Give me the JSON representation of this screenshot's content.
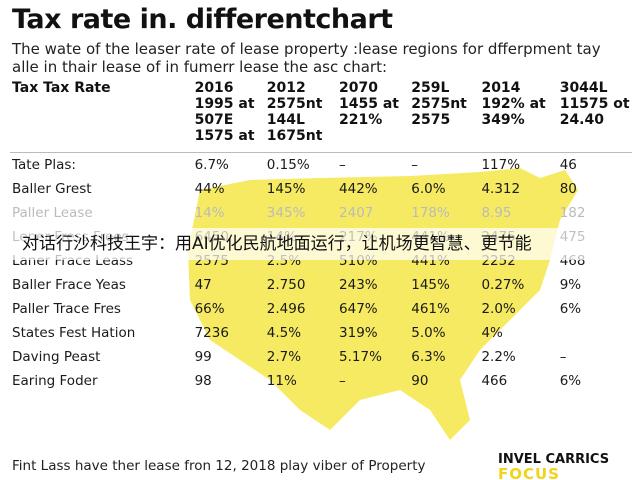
{
  "title": "Tax rate in. differentchart",
  "subtitle": "The wate of the leaser rate of lease property :lease regions for dfferpment tay alle in thair lease of in fumerr lease the asc chart:",
  "header": {
    "label": "Tax Tax Rate",
    "row1": [
      "2016\n1995 at",
      "2012\n2575nt",
      "2070\n1455 at",
      "259L\n2575nt",
      "2014\n192% at",
      "3044L\n11575 ot"
    ],
    "row2": [
      "507E\n1575 at",
      "144L\n1675nt",
      "221%",
      "2575",
      "349%",
      "24.40"
    ]
  },
  "rows": [
    {
      "label": "Tate Plas:",
      "values": [
        "6.7%",
        "0.15%",
        "–",
        "–",
        "117%",
        "46"
      ]
    },
    {
      "label": "Baller Grest",
      "values": [
        "44%",
        "145%",
        "442%",
        "6.0%",
        "4.312",
        "80"
      ]
    },
    {
      "label": "Paller Lease",
      "values": [
        "14%",
        "345%",
        "2407",
        "178%",
        "8.95",
        "182"
      ]
    },
    {
      "label": "Lener Fress Frees",
      "values": [
        "6450",
        "14%",
        "217%",
        "441%",
        "2475",
        "475"
      ]
    },
    {
      "label": "Laner Frace Leass",
      "values": [
        "2575",
        "2.5%",
        "510%",
        "441%",
        "2252",
        "468"
      ]
    },
    {
      "label": "Baller Frace Yeas",
      "values": [
        "47",
        "2.750",
        "243%",
        "145%",
        "0.27%",
        "9%"
      ]
    },
    {
      "label": "Paller Trace Fres",
      "values": [
        "66%",
        "2.496",
        "647%",
        "461%",
        "2.0%",
        "6%"
      ]
    },
    {
      "label": "States Fest Hation",
      "values": [
        "7236",
        "4.5%",
        "319%",
        "5.0%",
        "4%",
        ""
      ]
    },
    {
      "label": "Daving Peast",
      "values": [
        "99",
        "2.7%",
        "5.17%",
        "6.3%",
        "2.2%",
        "–"
      ]
    },
    {
      "label": "Earing Foder",
      "values": [
        "98",
        "11%",
        "–",
        "90",
        "466",
        "6%"
      ]
    }
  ],
  "overlay_banner": "对话行沙科技王宇：用AI优化民航地面运行，让机场更智慧、更节能",
  "footer": "Fint Lass have ther lease fron 12, 2018 play viber of Property",
  "brand": {
    "line1": "INVEL CARRICS",
    "line2": "FOCUS"
  },
  "colors": {
    "map": "#f6ea63",
    "text": "#111111"
  }
}
